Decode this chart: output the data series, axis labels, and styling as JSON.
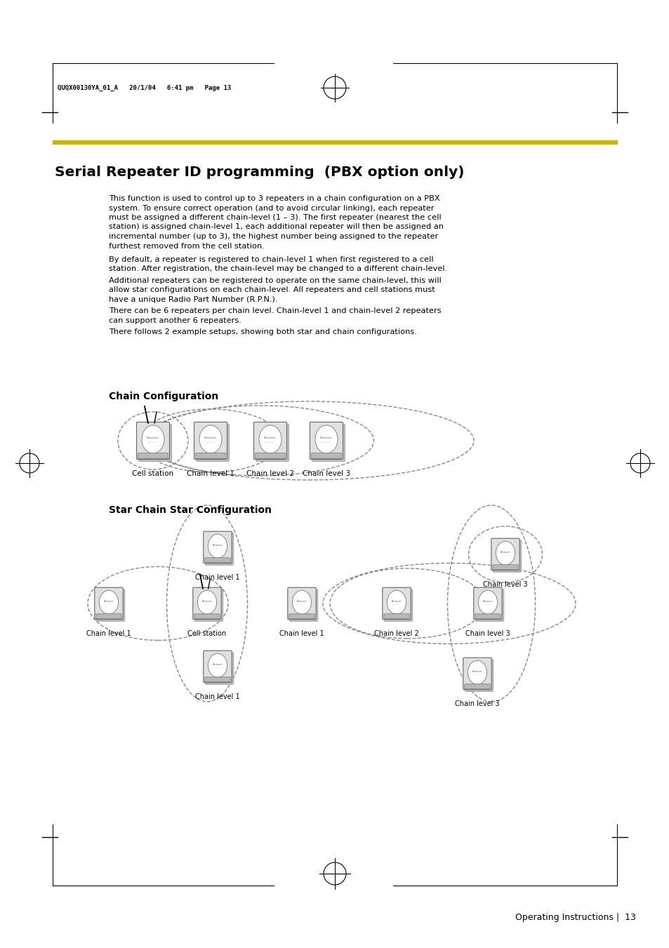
{
  "page_header_text": "QUQX00130YA_01_A   20/1/04   6:41 pm   Page 13",
  "title": "Serial Repeater ID programming  (PBX option only)",
  "title_bar_color": "#c8b400",
  "para1": "This function is used to control up to 3 repeaters in a chain configuration on a PBX\nsystem. To ensure correct operation (and to avoid circular linking), each repeater\nmust be assigned a different chain-level (1 – 3). The first repeater (nearest the cell\nstation) is assigned chain-level 1, each additional repeater will then be assigned an\nincremental number (up to 3), the highest number being assigned to the repeater\nfurthest removed from the cell station.",
  "para2": "By default, a repeater is registered to chain-level 1 when first registered to a cell\nstation. After registration, the chain-level may be changed to a different chain-level.",
  "para3": "Additional repeaters can be registered to operate on the same chain-level, this will\nallow star configurations on each chain-level. All repeaters and cell stations must\nhave a unique Radio Part Number (R.P.N.).",
  "para4": "There can be 6 repeaters per chain level. Chain-level 1 and chain-level 2 repeaters\ncan support another 6 repeaters.",
  "para5": "There follows 2 example setups, showing both star and chain configurations.",
  "chain_config_label": "Chain Configuration",
  "star_config_label": "Star Chain Star Configuration",
  "chain_device_labels": [
    "Cell station",
    "Chain level 1",
    "Chain level 2",
    "Chain level 3"
  ],
  "footer_text": "Operating Instructions |  13",
  "bg_color": "#ffffff"
}
